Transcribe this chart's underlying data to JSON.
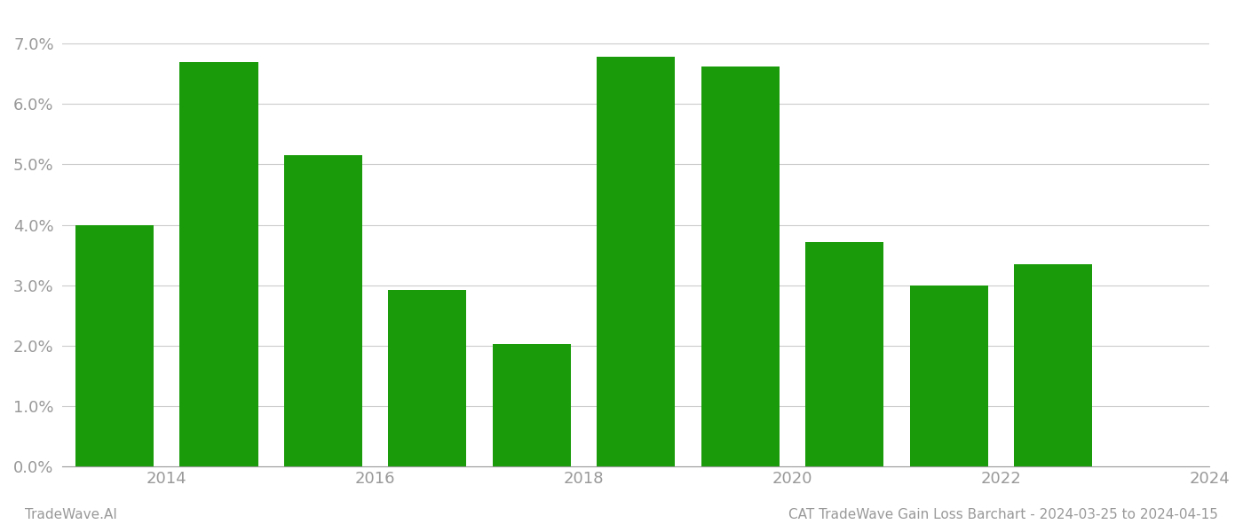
{
  "years": [
    2013,
    2014,
    2015,
    2016,
    2017,
    2018,
    2019,
    2020,
    2021,
    2022
  ],
  "values": [
    0.04,
    0.067,
    0.0515,
    0.0292,
    0.0202,
    0.0678,
    0.0662,
    0.0372,
    0.0299,
    0.0335
  ],
  "bar_color": "#1a9c0a",
  "title": "CAT TradeWave Gain Loss Barchart - 2024-03-25 to 2024-04-15",
  "watermark": "TradeWave.AI",
  "ylim": [
    0,
    0.075
  ],
  "yticks": [
    0.0,
    0.01,
    0.02,
    0.03,
    0.04,
    0.05,
    0.06,
    0.07
  ],
  "xtick_positions": [
    2013.5,
    2015.5,
    2017.5,
    2019.5,
    2021.5,
    2023.5
  ],
  "xtick_labels": [
    "2014",
    "2016",
    "2018",
    "2020",
    "2022",
    "2024"
  ],
  "xlim": [
    2012.5,
    2023.5
  ],
  "background_color": "#ffffff",
  "grid_color": "#cccccc",
  "axis_color": "#999999",
  "title_color": "#999999",
  "watermark_color": "#999999",
  "bar_width": 0.75
}
